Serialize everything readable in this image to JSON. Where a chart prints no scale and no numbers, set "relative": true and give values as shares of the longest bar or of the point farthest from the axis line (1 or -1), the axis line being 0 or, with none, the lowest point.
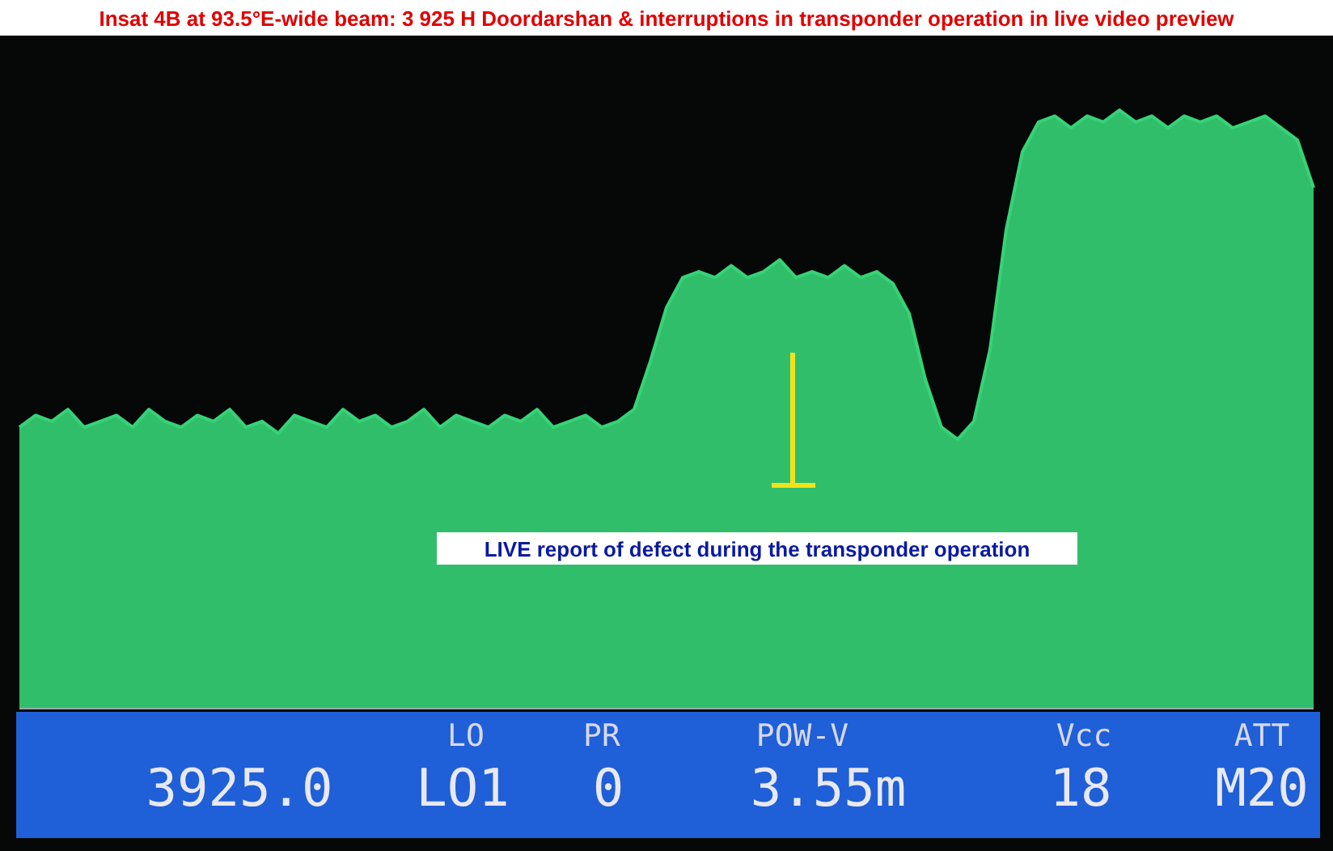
{
  "chart_data": {
    "type": "area",
    "relative": true,
    "title": "Insat 4B at 93.5°E-wide beam: 3 925 H Doordarshan & interruptions in transponder operation in live video preview",
    "annotations": [
      "LIVE report of defect during the transponder operation",
      "LO",
      "PR",
      "POW-V",
      "Vcc",
      "ATT",
      "3925.0",
      "LO1",
      "0",
      "3.55m",
      "18",
      "M20"
    ],
    "categories": [
      null,
      null,
      null,
      null,
      null,
      null,
      null,
      null,
      null,
      null,
      null,
      null,
      null,
      null,
      null,
      null,
      null,
      null,
      null,
      null,
      null,
      null,
      null,
      null,
      null,
      null,
      null,
      null,
      null,
      null,
      null,
      null,
      null,
      null,
      null,
      null,
      null,
      null,
      null,
      null,
      null,
      null,
      null,
      null,
      null,
      null,
      null,
      null,
      null,
      null,
      null,
      null,
      null,
      null,
      null,
      null,
      null,
      null,
      null,
      null,
      null,
      null,
      null,
      null,
      null,
      null,
      null,
      null,
      null,
      null,
      null,
      null,
      null,
      null,
      null,
      null,
      null,
      null,
      null,
      null,
      null
    ],
    "color": "#36d376",
    "values": [
      0.47,
      0.49,
      0.48,
      0.5,
      0.47,
      0.48,
      0.49,
      0.47,
      0.5,
      0.48,
      0.47,
      0.49,
      0.48,
      0.5,
      0.47,
      0.48,
      0.46,
      0.49,
      0.48,
      0.47,
      0.5,
      0.48,
      0.49,
      0.47,
      0.48,
      0.5,
      0.47,
      0.49,
      0.48,
      0.47,
      0.49,
      0.48,
      0.5,
      0.47,
      0.48,
      0.49,
      0.47,
      0.48,
      0.5,
      0.58,
      0.67,
      0.72,
      0.73,
      0.72,
      0.74,
      0.72,
      0.73,
      0.75,
      0.72,
      0.73,
      0.72,
      0.74,
      0.72,
      0.73,
      0.71,
      0.66,
      0.55,
      0.47,
      0.45,
      0.48,
      0.6,
      0.8,
      0.93,
      0.98,
      0.99,
      0.97,
      0.99,
      0.98,
      1.0,
      0.98,
      0.99,
      0.97,
      0.99,
      0.98,
      0.99,
      0.97,
      0.98,
      0.99,
      0.97,
      0.95,
      0.87
    ]
  }
}
